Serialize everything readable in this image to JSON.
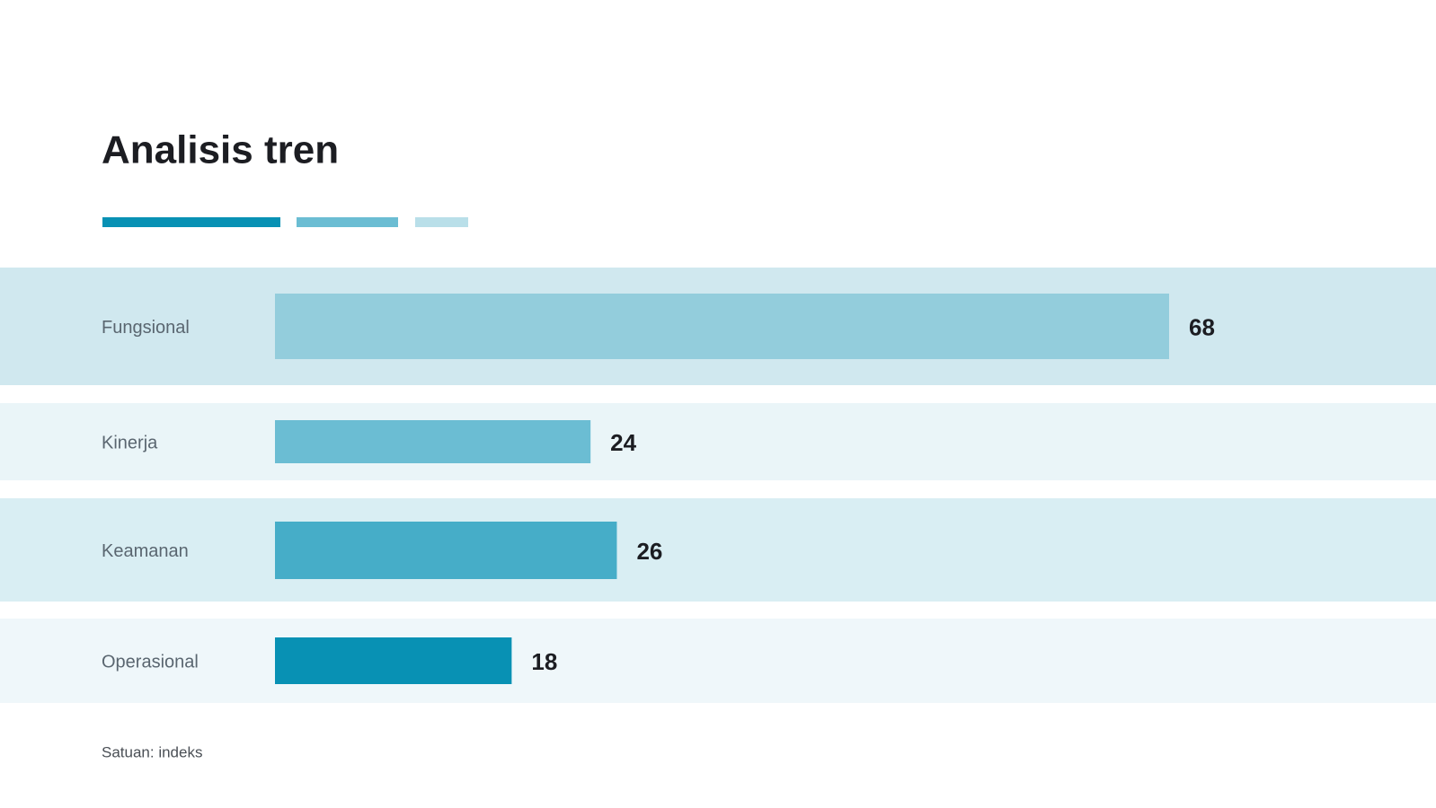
{
  "chart_data": {
    "type": "bar",
    "orientation": "horizontal",
    "title": "Analisis tren",
    "categories": [
      "Fungsional",
      "Kinerja",
      "Keamanan",
      "Operasional"
    ],
    "values": [
      68,
      24,
      26,
      18
    ],
    "colors": [
      "#93cddc",
      "#6bbdd3",
      "#46adc8",
      "#0891b4"
    ],
    "note": "Satuan: indeks"
  }
}
